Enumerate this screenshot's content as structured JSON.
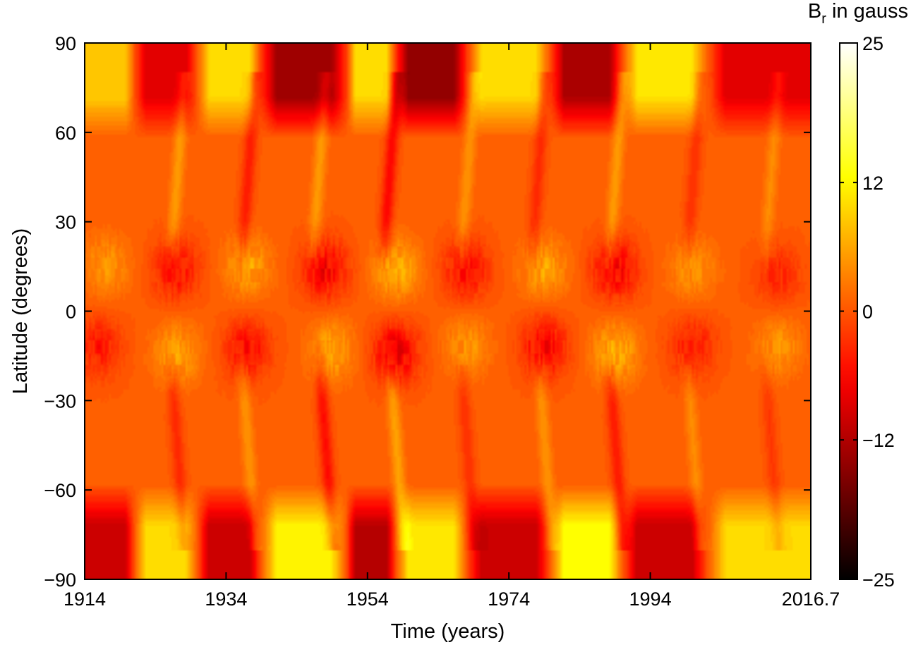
{
  "chart_data": {
    "type": "heatmap",
    "title": "",
    "xlabel": "Time (years)",
    "ylabel": "Latitude (degrees)",
    "xlim": [
      1914,
      2016.7
    ],
    "ylim": [
      -90,
      90
    ],
    "x_ticks": [
      1914,
      1934,
      1954,
      1974,
      1994,
      2016.7
    ],
    "x_tick_labels": [
      "1914",
      "1934",
      "1954",
      "1974",
      "1994",
      "2016.7"
    ],
    "y_ticks": [
      -90,
      -60,
      -30,
      0,
      30,
      60,
      90
    ],
    "y_tick_labels": [
      "−90",
      "−60",
      "−30",
      "0",
      "30",
      "60",
      "90"
    ],
    "colorbar": {
      "label_main": "B",
      "label_sub": "r",
      "label_rest": " in gauss",
      "range": [
        -25,
        25
      ],
      "ticks": [
        25,
        12,
        0,
        -12,
        -25
      ],
      "tick_labels": [
        "25",
        "12",
        "0",
        "−12",
        "−25"
      ],
      "colormap": "hot"
    },
    "polar_cycles": [
      {
        "north_start": 1914,
        "north_end": 1921,
        "north_value": 8,
        "south_value": -11
      },
      {
        "north_start": 1921,
        "north_end": 1930,
        "north_value": -9,
        "south_value": 9
      },
      {
        "north_start": 1930,
        "north_end": 1939,
        "north_value": 9,
        "south_value": -11
      },
      {
        "north_start": 1939,
        "north_end": 1951,
        "north_value": -14,
        "south_value": 11
      },
      {
        "north_start": 1951,
        "north_end": 1958,
        "north_value": 9,
        "south_value": -12
      },
      {
        "north_start": 1958,
        "north_end": 1968,
        "north_value": -15,
        "south_value": 10
      },
      {
        "north_start": 1968,
        "north_end": 1980,
        "north_value": 9,
        "south_value": -11
      },
      {
        "north_start": 1980,
        "north_end": 1990,
        "north_value": -13,
        "south_value": 12
      },
      {
        "north_start": 1990,
        "north_end": 2002,
        "north_value": 10,
        "south_value": -11
      },
      {
        "north_start": 2002,
        "north_end": 2016.7,
        "north_value": -9,
        "south_value": 9
      }
    ],
    "active_bands": [
      {
        "year": 1917,
        "lat": 15,
        "value": 4
      },
      {
        "year": 1916,
        "lat": -12,
        "value": -5
      },
      {
        "year": 1927,
        "lat": 14,
        "value": -6
      },
      {
        "year": 1927,
        "lat": -14,
        "value": 5
      },
      {
        "year": 1937,
        "lat": 15,
        "value": 5
      },
      {
        "year": 1937,
        "lat": -13,
        "value": -6
      },
      {
        "year": 1948,
        "lat": 14,
        "value": -7
      },
      {
        "year": 1949,
        "lat": -13,
        "value": 5
      },
      {
        "year": 1958,
        "lat": 14,
        "value": 6
      },
      {
        "year": 1958,
        "lat": -14,
        "value": -8
      },
      {
        "year": 1968,
        "lat": 14,
        "value": -6
      },
      {
        "year": 1968,
        "lat": -12,
        "value": 4
      },
      {
        "year": 1979,
        "lat": 14,
        "value": 5
      },
      {
        "year": 1979,
        "lat": -12,
        "value": -7
      },
      {
        "year": 1989,
        "lat": 14,
        "value": -7
      },
      {
        "year": 1989,
        "lat": -14,
        "value": 6
      },
      {
        "year": 2000,
        "lat": 14,
        "value": 4
      },
      {
        "year": 2000,
        "lat": -12,
        "value": -5
      },
      {
        "year": 2012,
        "lat": 12,
        "value": -4
      },
      {
        "year": 2012,
        "lat": -12,
        "value": 4
      }
    ],
    "poleward_surges": [
      {
        "year": 1926,
        "hemisphere": "north",
        "value": 8
      },
      {
        "year": 1926,
        "hemisphere": "south",
        "value": -7
      },
      {
        "year": 1936,
        "hemisphere": "north",
        "value": -9
      },
      {
        "year": 1936,
        "hemisphere": "south",
        "value": 7
      },
      {
        "year": 1946,
        "hemisphere": "north",
        "value": 8
      },
      {
        "year": 1947,
        "hemisphere": "south",
        "value": -11
      },
      {
        "year": 1956,
        "hemisphere": "north",
        "value": -12
      },
      {
        "year": 1957,
        "hemisphere": "south",
        "value": 9
      },
      {
        "year": 1967,
        "hemisphere": "north",
        "value": 7
      },
      {
        "year": 1967,
        "hemisphere": "south",
        "value": -6
      },
      {
        "year": 1977,
        "hemisphere": "north",
        "value": -7
      },
      {
        "year": 1978,
        "hemisphere": "south",
        "value": 7
      },
      {
        "year": 1988,
        "hemisphere": "north",
        "value": 8
      },
      {
        "year": 1988,
        "hemisphere": "south",
        "value": -9
      },
      {
        "year": 1999,
        "hemisphere": "north",
        "value": -6
      },
      {
        "year": 1999,
        "hemisphere": "south",
        "value": 6
      },
      {
        "year": 2010,
        "hemisphere": "north",
        "value": 6
      },
      {
        "year": 2010,
        "hemisphere": "south",
        "value": -5
      }
    ]
  }
}
